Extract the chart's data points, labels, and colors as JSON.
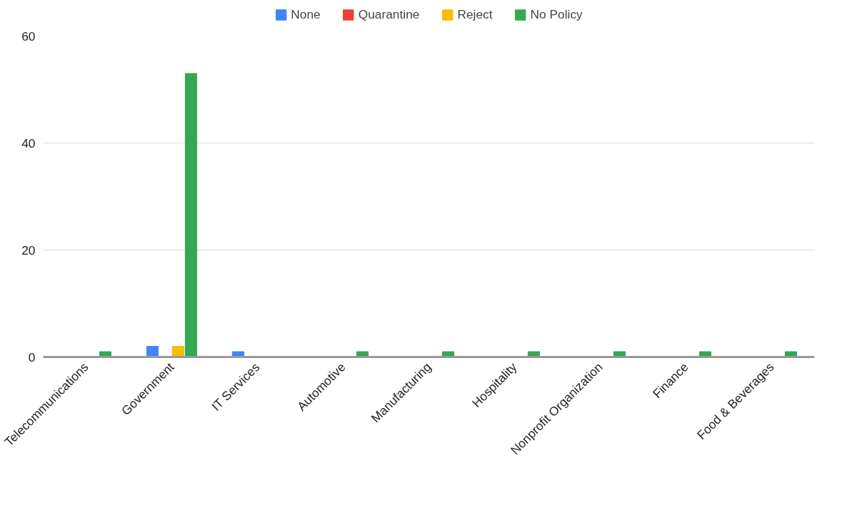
{
  "chart_data": {
    "type": "bar",
    "categories": [
      "Telecommunications",
      "Government",
      "IT Services",
      "Automotive",
      "Manufacturing",
      "Hospitality",
      "Nonprofit Organization",
      "Finance",
      "Food & Beverages"
    ],
    "series": [
      {
        "name": "None",
        "color": "#4285f4",
        "values": [
          0,
          2,
          1,
          0,
          0,
          0,
          0,
          0,
          0
        ]
      },
      {
        "name": "Quarantine",
        "color": "#ea4335",
        "values": [
          0,
          0,
          0,
          0,
          0,
          0,
          0,
          0,
          0
        ]
      },
      {
        "name": "Reject",
        "color": "#fbbc04",
        "values": [
          0,
          2,
          0,
          0,
          0,
          0,
          0,
          0,
          0
        ]
      },
      {
        "name": "No Policy",
        "color": "#34a853",
        "values": [
          1,
          53,
          0,
          1,
          1,
          1,
          1,
          1,
          1
        ]
      }
    ],
    "ylim": [
      0,
      60
    ],
    "yticks": [
      0,
      20,
      40,
      60
    ],
    "grid": "y",
    "legend": "top"
  }
}
